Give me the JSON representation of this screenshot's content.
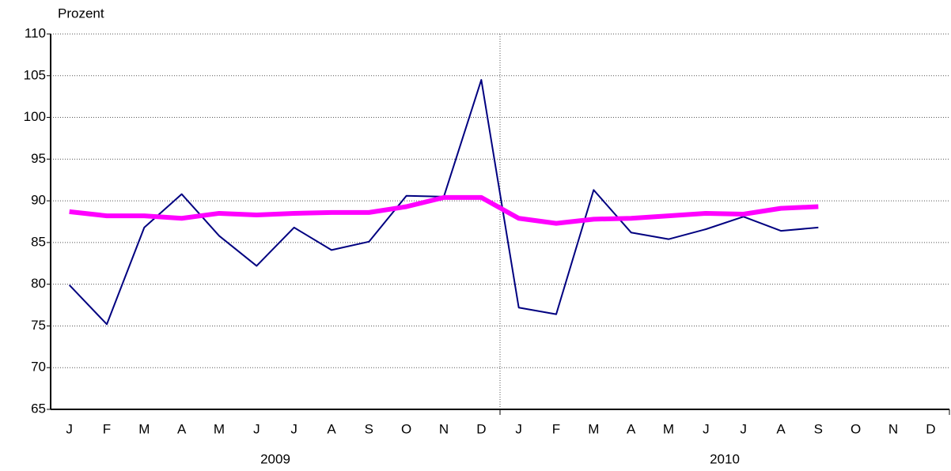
{
  "chart_data": {
    "type": "line",
    "ylabel": "Prozent",
    "categories": [
      "J",
      "F",
      "M",
      "A",
      "M",
      "J",
      "J",
      "A",
      "S",
      "O",
      "N",
      "D",
      "J",
      "F",
      "M",
      "A",
      "M",
      "J",
      "J",
      "A",
      "S",
      "O",
      "N",
      "D"
    ],
    "groups": [
      "2009",
      "2010"
    ],
    "series": [
      {
        "color": "#000080",
        "width": 2,
        "values": [
          79.9,
          75.2,
          86.8,
          90.8,
          85.8,
          82.2,
          86.8,
          84.1,
          85.1,
          90.6,
          90.5,
          104.5,
          77.2,
          76.4,
          91.3,
          86.2,
          85.4,
          86.6,
          88.1,
          86.4,
          86.8,
          null,
          null,
          null
        ]
      },
      {
        "color": "#ff00ff",
        "width": 6,
        "values": [
          88.7,
          88.2,
          88.2,
          87.9,
          88.5,
          88.3,
          88.5,
          88.6,
          88.6,
          89.3,
          90.4,
          90.4,
          87.9,
          87.3,
          87.8,
          87.9,
          88.2,
          88.5,
          88.4,
          89.1,
          89.3,
          null,
          null,
          null
        ]
      }
    ],
    "ylim": [
      65,
      110
    ],
    "yticks": [
      65,
      70,
      75,
      80,
      85,
      90,
      95,
      100,
      105,
      110
    ],
    "grid": true
  }
}
